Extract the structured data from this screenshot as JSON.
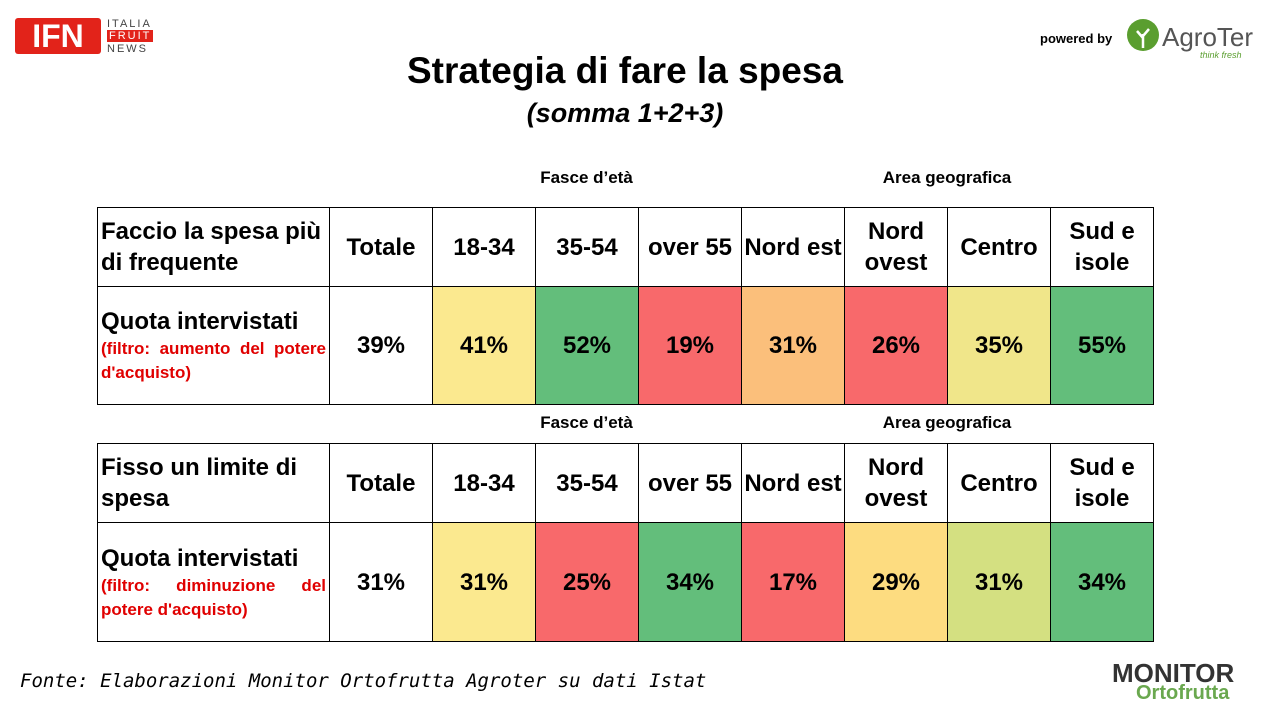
{
  "header": {
    "logo_left": {
      "abbr": "IFN",
      "lines": [
        "ITALIA",
        "FRUIT",
        "NEWS"
      ]
    },
    "powered_by": "powered by",
    "logo_right": {
      "name": "AgroTer",
      "tagline": "think fresh"
    }
  },
  "title": "Strategia di fare la spesa",
  "subtitle": "(somma 1+2+3)",
  "tables": [
    {
      "groups": [
        "Fasce d’età",
        "Area geografica"
      ],
      "header": [
        "Faccio la spesa più di frequente",
        "Totale",
        "18-34",
        "35-54",
        "over 55",
        "Nord est",
        "Nord ovest",
        "Centro",
        "Sud e isole"
      ],
      "row_label": "Quota intervistati",
      "row_note": "(filtro: aumento del potere d'acquisto)",
      "values": [
        "39%",
        "41%",
        "52%",
        "19%",
        "31%",
        "26%",
        "35%",
        "55%"
      ],
      "colors": [
        "#ffffff",
        "#fbe98f",
        "#63be7b",
        "#f8696b",
        "#fbbf7b",
        "#f8696b",
        "#f0e68a",
        "#63be7b"
      ]
    },
    {
      "groups": [
        "Fasce d’età",
        "Area geografica"
      ],
      "header": [
        "Fisso un limite di spesa",
        "Totale",
        "18-34",
        "35-54",
        "over 55",
        "Nord est",
        "Nord ovest",
        "Centro",
        "Sud e isole"
      ],
      "row_label": "Quota intervistati",
      "row_note": "(filtro: diminuzione del potere d'acquisto)",
      "values": [
        "31%",
        "31%",
        "25%",
        "34%",
        "17%",
        "29%",
        "31%",
        "34%"
      ],
      "colors": [
        "#ffffff",
        "#fbe98f",
        "#f8696b",
        "#63be7b",
        "#f8696b",
        "#fddc80",
        "#d4e081",
        "#63be7b"
      ]
    }
  ],
  "footer": {
    "source": "Fonte: Elaborazioni Monitor Ortofrutta Agroter su dati Istat",
    "logo": {
      "word1": "MONITOR",
      "word2": "Ortofrutta"
    }
  }
}
